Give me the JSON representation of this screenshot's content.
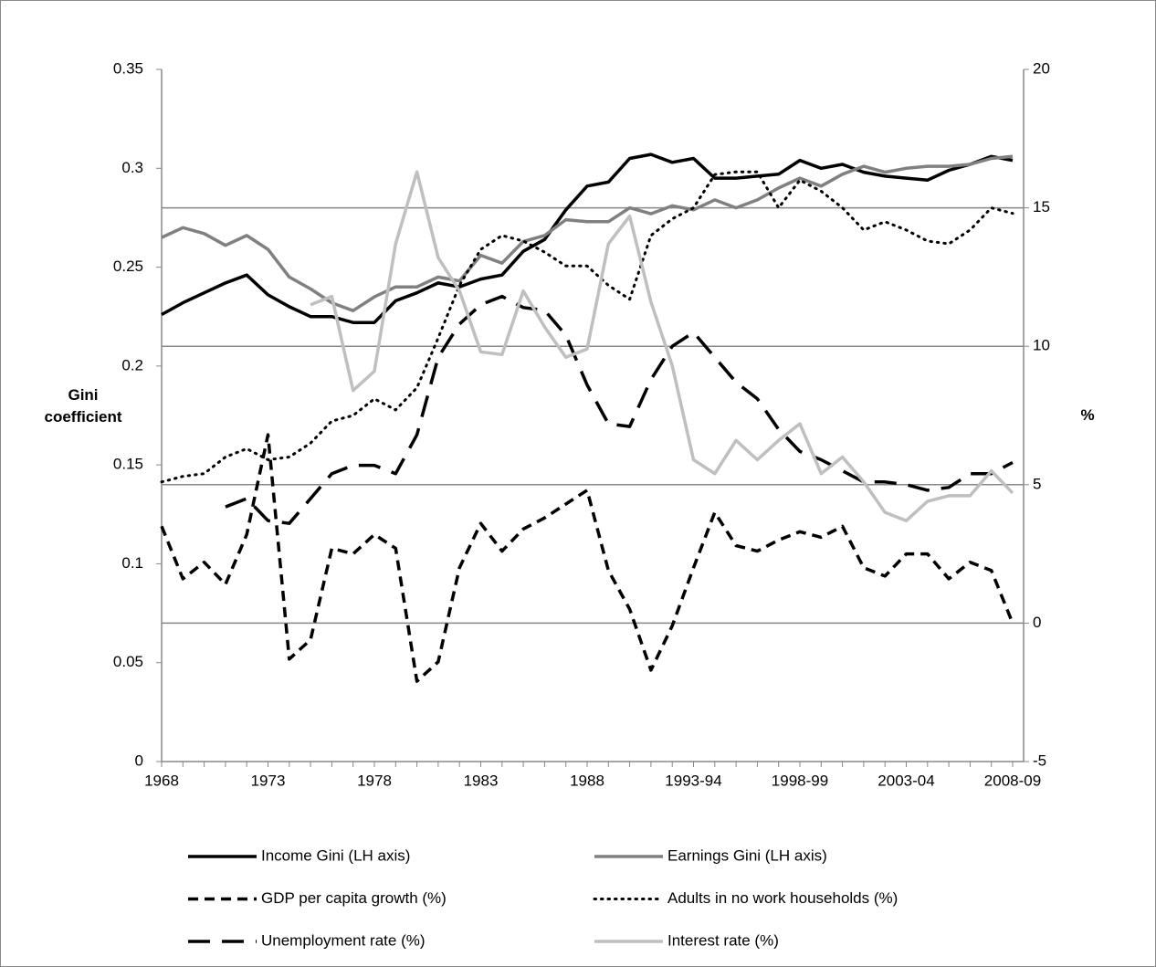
{
  "chart_data": {
    "type": "line",
    "y_label": "Gini coefficient",
    "y2_label": "%",
    "categories": [
      "1968",
      null,
      null,
      null,
      null,
      "1973",
      null,
      null,
      null,
      null,
      "1978",
      null,
      null,
      null,
      null,
      "1983",
      null,
      null,
      null,
      null,
      "1988",
      null,
      null,
      null,
      null,
      "1993-94",
      null,
      null,
      null,
      null,
      "1998-99",
      null,
      null,
      null,
      null,
      "2003-04",
      null,
      null,
      null,
      null,
      "2008-09"
    ],
    "ylim": [
      0,
      0.35
    ],
    "yticks": [
      0,
      0.05,
      0.1,
      0.15,
      0.2,
      0.25,
      0.3,
      0.35
    ],
    "y2lim": [
      -5,
      20
    ],
    "y2ticks": [
      -5,
      0,
      5,
      10,
      15,
      20
    ],
    "grid": "y2",
    "legend": "bottom",
    "series": [
      {
        "name": "Income Gini (LH axis)",
        "color": "#000000",
        "dash": "solid",
        "values": [
          0.226,
          0.232,
          0.237,
          0.242,
          0.246,
          0.236,
          0.23,
          0.225,
          0.225,
          0.222,
          0.222,
          0.233,
          0.237,
          0.242,
          0.24,
          0.244,
          0.246,
          0.258,
          0.264,
          0.279,
          0.291,
          0.293,
          0.305,
          0.307,
          0.303,
          0.305,
          0.295,
          0.295,
          0.296,
          0.297,
          0.304,
          0.3,
          0.302,
          0.298,
          0.296,
          0.295,
          0.294,
          0.299,
          0.302,
          0.306,
          0.304
        ]
      },
      {
        "name": "Earnings Gini (LH axis)",
        "color": "#808080",
        "dash": "solid",
        "values": [
          0.265,
          0.27,
          0.267,
          0.261,
          0.266,
          0.259,
          0.245,
          0.239,
          0.232,
          0.228,
          0.235,
          0.24,
          0.24,
          0.245,
          0.243,
          0.256,
          0.252,
          0.263,
          0.266,
          0.274,
          0.273,
          0.273,
          0.28,
          0.277,
          0.281,
          0.279,
          0.284,
          0.28,
          0.284,
          0.29,
          0.295,
          0.291,
          0.297,
          0.301,
          0.298,
          0.3,
          0.301,
          0.301,
          0.302,
          0.305,
          0.306
        ]
      },
      {
        "name": "GDP per capita growth (%)",
        "color": "#000000",
        "dash": "dashed",
        "axis": "y2",
        "values": [
          3.5,
          1.6,
          2.2,
          1.4,
          3.2,
          6.8,
          -1.3,
          -0.6,
          2.7,
          2.5,
          3.2,
          2.7,
          -2.1,
          -1.4,
          2.0,
          3.6,
          2.6,
          3.4,
          3.8,
          4.3,
          4.8,
          1.9,
          0.5,
          -1.7,
          -0.1,
          2.0,
          4.0,
          2.8,
          2.6,
          3.0,
          3.3,
          3.1,
          3.5,
          2.0,
          1.7,
          2.5,
          2.5,
          1.6,
          2.2,
          1.9,
          0.0
        ]
      },
      {
        "name": "Adults in no work households (%)",
        "color": "#000000",
        "dash": "dotted",
        "axis": "y2",
        "values": [
          5.1,
          5.3,
          5.4,
          6.0,
          6.3,
          5.9,
          6.0,
          6.5,
          7.3,
          7.5,
          8.1,
          7.7,
          8.5,
          10.3,
          12.2,
          13.5,
          14.0,
          13.8,
          13.4,
          12.9,
          12.9,
          12.2,
          11.7,
          14.0,
          14.6,
          15.0,
          16.2,
          16.3,
          16.3,
          15.0,
          16.0,
          15.6,
          15.0,
          14.2,
          14.5,
          14.2,
          13.8,
          13.7,
          14.2,
          15.0,
          14.8
        ]
      },
      {
        "name": "Unemployment rate (%)",
        "color": "#000000",
        "dash": "long-dashed",
        "axis": "y2",
        "values": [
          null,
          null,
          null,
          4.2,
          4.5,
          3.7,
          3.6,
          4.5,
          5.4,
          5.7,
          5.7,
          5.4,
          6.8,
          9.6,
          10.8,
          11.5,
          11.8,
          11.4,
          11.3,
          10.4,
          8.6,
          7.2,
          7.1,
          8.8,
          10.0,
          10.5,
          9.6,
          8.7,
          8.1,
          7.0,
          6.2,
          5.9,
          5.5,
          5.1,
          5.1,
          5.0,
          4.8,
          4.9,
          5.4,
          5.4,
          5.8
        ]
      },
      {
        "name": "Interest rate (%)",
        "color": "#bfbfbf",
        "dash": "solid",
        "axis": "y2",
        "values": [
          null,
          null,
          null,
          null,
          null,
          null,
          null,
          11.5,
          11.8,
          8.4,
          9.1,
          13.7,
          16.3,
          13.2,
          12.0,
          9.8,
          9.7,
          12.0,
          10.7,
          9.6,
          9.9,
          13.7,
          14.7,
          11.6,
          9.3,
          5.9,
          5.4,
          6.6,
          5.9,
          6.6,
          7.2,
          5.4,
          6.0,
          5.1,
          4.0,
          3.7,
          4.4,
          4.6,
          4.6,
          5.5,
          4.7
        ]
      }
    ]
  }
}
